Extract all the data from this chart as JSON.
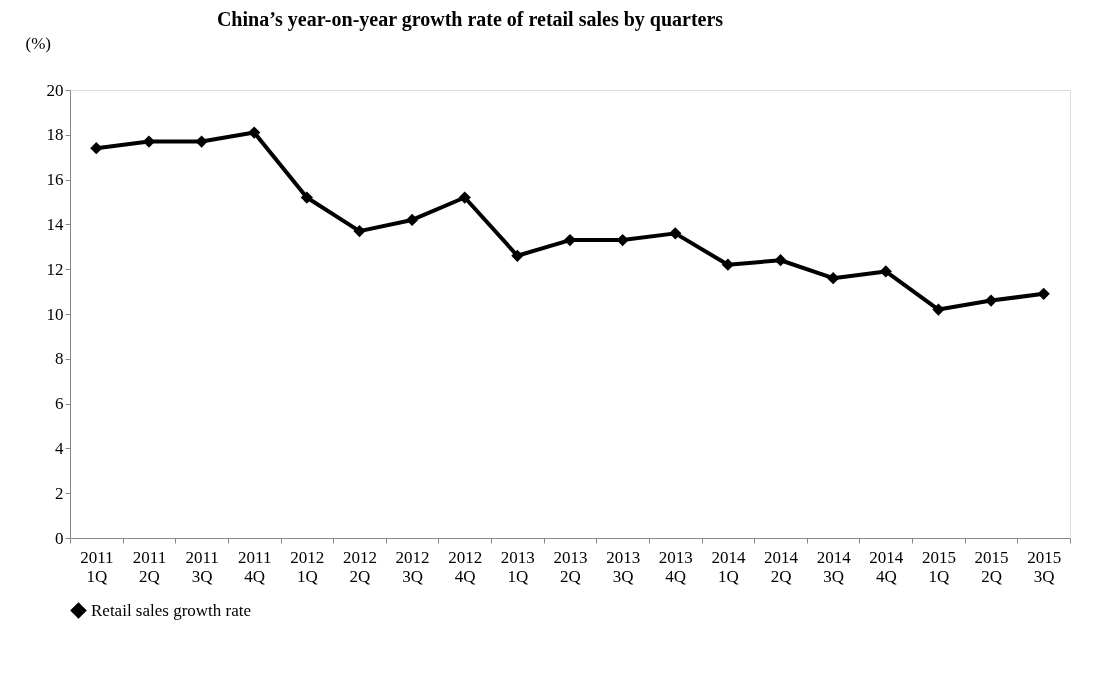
{
  "chart_data": {
    "type": "line",
    "title": "China’s year-on-year growth rate of retail sales by quarters",
    "ylabel": "(%)",
    "categories": [
      "2011 1Q",
      "2011 2Q",
      "2011 3Q",
      "2011 4Q",
      "2012 1Q",
      "2012 2Q",
      "2012 3Q",
      "2012 4Q",
      "2013 1Q",
      "2013 2Q",
      "2013 3Q",
      "2013 4Q",
      "2014 1Q",
      "2014 2Q",
      "2014 3Q",
      "2014 4Q",
      "2015 1Q",
      "2015 2Q",
      "2015 3Q"
    ],
    "series": [
      {
        "name": "Retail sales growth rate",
        "color": "#000000",
        "values": [
          17.4,
          17.7,
          17.7,
          18.1,
          15.2,
          13.7,
          14.2,
          15.2,
          12.6,
          13.3,
          13.3,
          13.6,
          12.2,
          12.4,
          11.6,
          11.9,
          10.2,
          10.6,
          10.9
        ]
      }
    ],
    "ylim": [
      0,
      20
    ],
    "yticks": [
      0,
      2,
      4,
      6,
      8,
      10,
      12,
      14,
      16,
      18,
      20
    ],
    "grid": false,
    "legend": "bottom",
    "marker": "diamond",
    "line_style": "solid"
  }
}
